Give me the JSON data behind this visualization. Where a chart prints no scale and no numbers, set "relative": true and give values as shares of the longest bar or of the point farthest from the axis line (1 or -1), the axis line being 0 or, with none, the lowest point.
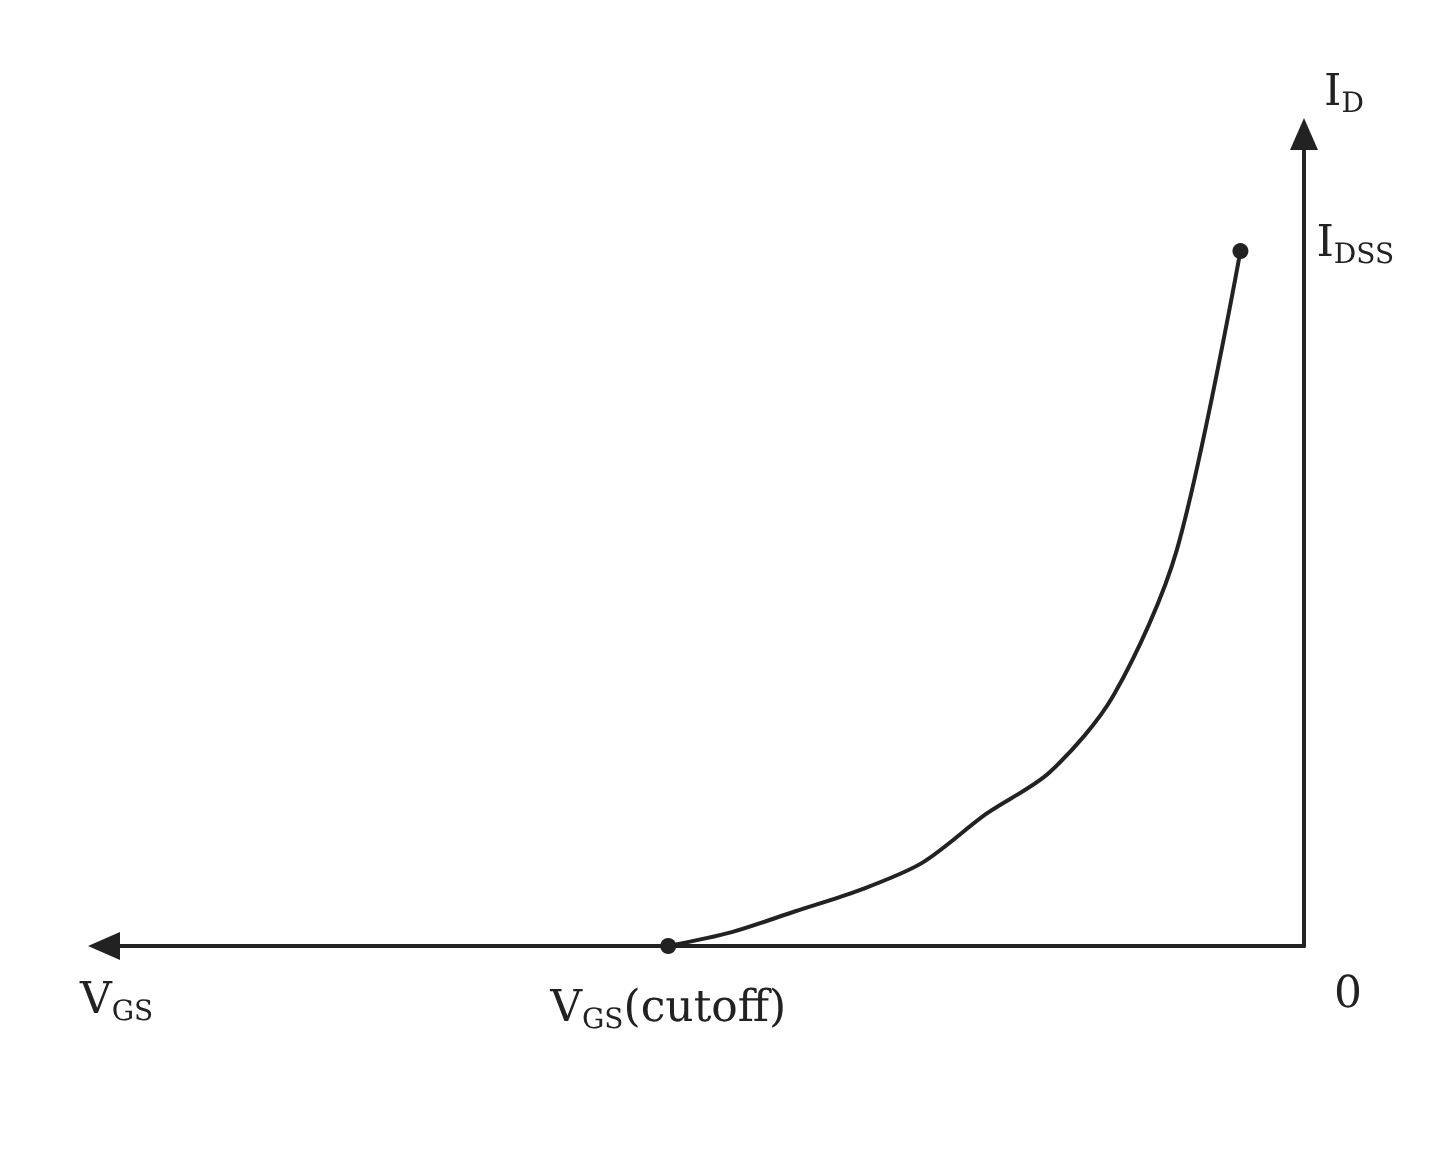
{
  "chart_data": {
    "type": "line",
    "relative": true,
    "xlabel": "V$_{GS}$",
    "ylabel": "I$_{D}$",
    "categories": [
      null,
      null,
      null,
      null,
      null,
      null,
      null,
      null,
      null,
      null,
      null,
      null,
      null,
      null,
      null,
      null,
      null,
      null,
      null,
      null
    ],
    "series": [
      {
        "color": "#222222",
        "values": [
          null,
          null,
          null,
          null,
          null,
          null,
          null,
          null,
          null,
          0,
          0.02,
          0.05,
          0.08,
          0.12,
          0.19,
          0.25,
          0.36,
          0.57,
          1,
          null
        ]
      }
    ],
    "annotations": [
      "I$_{DSS}$",
      "V$_{GS}$(cutoff)",
      "0"
    ],
    "line_style": "solid"
  }
}
